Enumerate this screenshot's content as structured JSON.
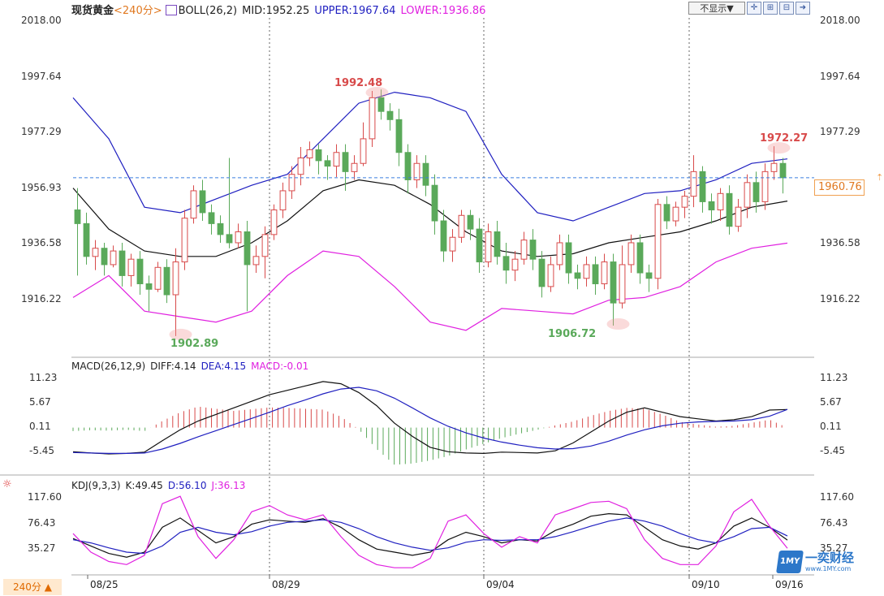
{
  "header": {
    "instrument": "现货黄金",
    "period_tag": "<240分>",
    "indicator_icon": "boll-icon",
    "boll_name": "BOLL(26,2)",
    "mid": "MID:1952.25",
    "upper": "UPPER:1967.64",
    "lower": "LOWER:1936.86"
  },
  "toolbar": {
    "hide_select": "不显示▼",
    "icons": [
      "crosshair-icon",
      "zoom-in-icon",
      "zoom-out-icon",
      "next-icon"
    ]
  },
  "colors": {
    "up": "#d84a4a",
    "down": "#5aa95a",
    "upper": "#1f1fc0",
    "lower": "#e020e0",
    "mid": "#111111",
    "current": "#3a7de0",
    "diff": "#111111",
    "dea": "#2020c0",
    "k": "#111111",
    "d": "#2020c0",
    "j": "#e020e0"
  },
  "price_axis": {
    "ticks": [
      "2018.00",
      "1997.64",
      "1977.29",
      "1956.93",
      "1936.58",
      "1916.22"
    ],
    "current_price": "1960.76"
  },
  "annotations": {
    "high1": "1992.48",
    "high2": "1972.27",
    "low1": "1902.89",
    "low2": "1906.72"
  },
  "macd": {
    "legend_name": "MACD(26,12,9)",
    "diff": "DIFF:4.14",
    "dea": "DEA:4.15",
    "macd": "MACD:-0.01",
    "ticks": [
      "11.23",
      "5.67",
      "0.11",
      "-5.45"
    ]
  },
  "kdj": {
    "legend_name": "KDJ(9,3,3)",
    "k": "K:49.45",
    "d": "D:56.10",
    "j": "J:36.13",
    "ticks": [
      "117.60",
      "76.43",
      "35.27"
    ]
  },
  "x_axis": {
    "dates": [
      "08/25",
      "08/29",
      "09/04",
      "09/10",
      "09/16"
    ]
  },
  "period_button": "240分 ▲",
  "watermark": {
    "logo": "1MY",
    "text": "一奕财经",
    "url": "www.1MY.com"
  },
  "chart_data": [
    {
      "type": "candlestick",
      "title": "现货黄金 BOLL(26,2)",
      "ylim": [
        1896,
        2022
      ],
      "grid": false,
      "note_cols": 80,
      "candles": [
        [
          1949,
          1944,
          1957,
          1925
        ],
        [
          1944,
          1932,
          1948,
          1929
        ],
        [
          1932,
          1935,
          1938,
          1927
        ],
        [
          1935,
          1929,
          1937,
          1925
        ],
        [
          1929,
          1934,
          1936,
          1928
        ],
        [
          1934,
          1925,
          1937,
          1921
        ],
        [
          1925,
          1931,
          1933,
          1921
        ],
        [
          1931,
          1922,
          1934,
          1918
        ],
        [
          1922,
          1920,
          1925,
          1912
        ],
        [
          1920,
          1928,
          1930,
          1919
        ],
        [
          1928,
          1918,
          1931,
          1915
        ],
        [
          1918,
          1930,
          1935,
          1902.89
        ],
        [
          1930,
          1946,
          1949,
          1927
        ],
        [
          1946,
          1956,
          1958,
          1944
        ],
        [
          1956,
          1948,
          1960,
          1945
        ],
        [
          1948,
          1944,
          1951,
          1940
        ],
        [
          1944,
          1940,
          1947,
          1937
        ],
        [
          1940,
          1937,
          1968,
          1935
        ],
        [
          1937,
          1941,
          1944,
          1935
        ],
        [
          1941,
          1929,
          1945,
          1912
        ],
        [
          1929,
          1932,
          1936,
          1926
        ],
        [
          1932,
          1940,
          1943,
          1924
        ],
        [
          1940,
          1949,
          1951,
          1938
        ],
        [
          1949,
          1956,
          1959,
          1946
        ],
        [
          1956,
          1962,
          1965,
          1953
        ],
        [
          1962,
          1968,
          1972,
          1958
        ],
        [
          1968,
          1971,
          1974,
          1965
        ],
        [
          1971,
          1967,
          1973,
          1962
        ],
        [
          1967,
          1965,
          1969,
          1960
        ],
        [
          1965,
          1970,
          1973,
          1961
        ],
        [
          1970,
          1963,
          1973,
          1956
        ],
        [
          1963,
          1966,
          1969,
          1960
        ],
        [
          1966,
          1975,
          1981,
          1965
        ],
        [
          1975,
          1990,
          1992.48,
          1972
        ],
        [
          1990,
          1985,
          1993,
          1982
        ],
        [
          1985,
          1982,
          1988,
          1978
        ],
        [
          1982,
          1970,
          1986,
          1965
        ],
        [
          1970,
          1960,
          1973,
          1955
        ],
        [
          1960,
          1966,
          1969,
          1957
        ],
        [
          1966,
          1958,
          1969,
          1954
        ],
        [
          1958,
          1945,
          1962,
          1940
        ],
        [
          1945,
          1934,
          1949,
          1930
        ],
        [
          1934,
          1939,
          1942,
          1930
        ],
        [
          1939,
          1947,
          1949,
          1937
        ],
        [
          1947,
          1942,
          1949,
          1938
        ],
        [
          1942,
          1930,
          1946,
          1926
        ],
        [
          1930,
          1941,
          1944,
          1928
        ],
        [
          1941,
          1932,
          1945,
          1929
        ],
        [
          1932,
          1927,
          1937,
          1922
        ],
        [
          1927,
          1931,
          1934,
          1923
        ],
        [
          1931,
          1938,
          1941,
          1929
        ],
        [
          1938,
          1931,
          1942,
          1927
        ],
        [
          1931,
          1921,
          1934,
          1917
        ],
        [
          1921,
          1929,
          1932,
          1919
        ],
        [
          1929,
          1937,
          1940,
          1927
        ],
        [
          1937,
          1926,
          1940,
          1922
        ],
        [
          1926,
          1924,
          1929,
          1920
        ],
        [
          1924,
          1929,
          1932,
          1921
        ],
        [
          1929,
          1922,
          1932,
          1918
        ],
        [
          1922,
          1930,
          1933,
          1920
        ],
        [
          1930,
          1915,
          1933,
          1906.72
        ],
        [
          1915,
          1929,
          1936,
          1913
        ],
        [
          1929,
          1937,
          1940,
          1926
        ],
        [
          1937,
          1926,
          1940,
          1922
        ],
        [
          1926,
          1924,
          1929,
          1919
        ],
        [
          1924,
          1951,
          1953,
          1920
        ],
        [
          1951,
          1945,
          1954,
          1942
        ],
        [
          1945,
          1950,
          1952,
          1943
        ],
        [
          1950,
          1954,
          1956,
          1946
        ],
        [
          1954,
          1963,
          1969,
          1950
        ],
        [
          1963,
          1952,
          1965,
          1948
        ],
        [
          1952,
          1949,
          1955,
          1944
        ],
        [
          1949,
          1955,
          1957,
          1945
        ],
        [
          1955,
          1943,
          1958,
          1940
        ],
        [
          1943,
          1950,
          1953,
          1941
        ],
        [
          1950,
          1959,
          1962,
          1946
        ],
        [
          1959,
          1952,
          1963,
          1948
        ],
        [
          1952,
          1963,
          1966,
          1949
        ],
        [
          1963,
          1966,
          1972.27,
          1960
        ],
        [
          1966,
          1960.76,
          1968,
          1955
        ]
      ],
      "upper": [
        1990,
        1975,
        1950,
        1948,
        1953,
        1958,
        1962,
        1975,
        1988,
        1992,
        1990,
        1985,
        1962,
        1948,
        1945,
        1950,
        1955,
        1956,
        1960,
        1966,
        1967.64
      ],
      "mid": [
        1957,
        1942,
        1934,
        1932,
        1932,
        1937,
        1945,
        1956,
        1960,
        1958,
        1951,
        1941,
        1934,
        1932,
        1933,
        1937,
        1939,
        1941,
        1945,
        1950,
        1952.25
      ],
      "lower": [
        1917,
        1925,
        1912,
        1910,
        1908,
        1912,
        1925,
        1934,
        1932,
        1921,
        1908,
        1905,
        1913,
        1912,
        1911,
        1916,
        1917,
        1921,
        1930,
        1935,
        1936.86
      ]
    },
    {
      "type": "bar",
      "title": "MACD(26,12,9)",
      "ylim": [
        -10,
        14
      ],
      "diff": [
        -5.5,
        -5.8,
        -6,
        -5.9,
        -5.6,
        -3,
        -0.5,
        1.5,
        3,
        4.5,
        6,
        7.5,
        8.5,
        9.5,
        10.5,
        10,
        8,
        5,
        1,
        -2,
        -4.5,
        -5.5,
        -5.8,
        -5.9,
        -5.6,
        -5.7,
        -5.8,
        -5.3,
        -3.5,
        -1,
        1.5,
        3.5,
        4.5,
        3.5,
        2.5,
        2,
        1.5,
        1.8,
        2.5,
        4,
        4.14
      ],
      "dea": [
        -5.7,
        -5.8,
        -5.9,
        -5.9,
        -5.8,
        -4.9,
        -3.6,
        -2.1,
        -0.7,
        0.7,
        2.1,
        3.5,
        5,
        6.3,
        7.7,
        8.8,
        9.2,
        8.4,
        6.7,
        4.5,
        2.2,
        0.3,
        -1.2,
        -2.4,
        -3.3,
        -4,
        -4.6,
        -4.9,
        -4.8,
        -4.2,
        -3.1,
        -1.7,
        -0.5,
        0.4,
        1,
        1.3,
        1.4,
        1.5,
        1.8,
        2.6,
        4.15
      ],
      "macd": [
        -0.8,
        -0.6,
        -0.7,
        -0.5,
        -0.8,
        1.5,
        3.5,
        4.8,
        4.3,
        3.8,
        4.2,
        4.6,
        4.5,
        4.3,
        4.1,
        2.5,
        -0.4,
        -4.9,
        -8.5,
        -8.2,
        -7.5,
        -6.5,
        -5,
        -3.7,
        -2.4,
        -1.4,
        -0.5,
        0.5,
        1.4,
        2.7,
        3.8,
        4.5,
        4.3,
        3,
        1.3,
        0.7,
        0.2,
        0.4,
        1.1,
        1.8,
        -0.01
      ]
    },
    {
      "type": "line",
      "title": "KDJ(9,3,3)",
      "ylim": [
        0,
        135
      ],
      "series": [
        {
          "name": "K",
          "values": [
            52,
            40,
            28,
            22,
            30,
            70,
            85,
            65,
            45,
            55,
            75,
            82,
            80,
            78,
            84,
            70,
            50,
            35,
            30,
            25,
            30,
            50,
            62,
            55,
            45,
            50,
            48,
            65,
            75,
            88,
            92,
            90,
            70,
            50,
            40,
            35,
            45,
            72,
            85,
            70,
            49.45
          ]
        },
        {
          "name": "D",
          "values": [
            50,
            45,
            37,
            30,
            28,
            40,
            62,
            70,
            62,
            58,
            63,
            72,
            78,
            80,
            82,
            78,
            68,
            55,
            45,
            38,
            33,
            37,
            46,
            50,
            49,
            50,
            50,
            55,
            63,
            72,
            80,
            85,
            80,
            72,
            60,
            50,
            45,
            55,
            68,
            70,
            56.1
          ]
        },
        {
          "name": "J",
          "values": [
            60,
            30,
            15,
            10,
            25,
            108,
            120,
            55,
            20,
            50,
            95,
            105,
            90,
            82,
            90,
            55,
            25,
            10,
            5,
            5,
            20,
            80,
            90,
            60,
            38,
            55,
            45,
            90,
            100,
            110,
            112,
            100,
            50,
            20,
            10,
            10,
            40,
            95,
            115,
            72,
            36.13
          ]
        }
      ]
    }
  ]
}
